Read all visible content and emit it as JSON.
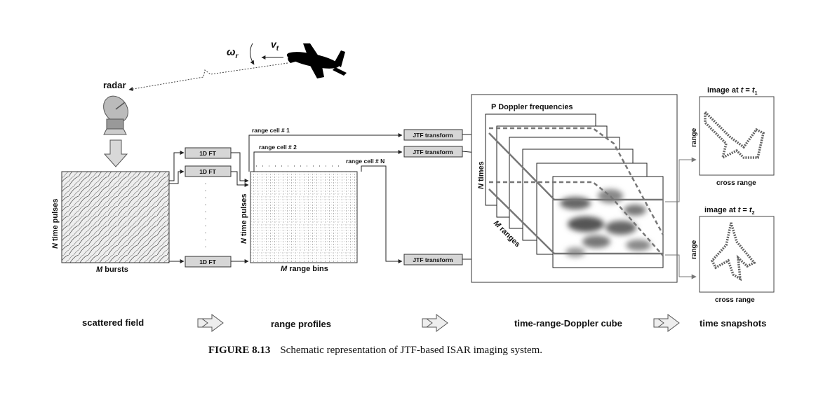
{
  "target": {
    "omega": "ω",
    "omega_sub": "r",
    "velocity": "v",
    "velocity_sub": "t"
  },
  "radar": {
    "label": "radar"
  },
  "scattered": {
    "y_label_var": "N",
    "y_label": " time pulses",
    "x_label_var": "M",
    "x_label": " bursts"
  },
  "ft_boxes": {
    "label": "1D FT"
  },
  "profiles": {
    "y_label_var": "N",
    "y_label": " time pulses",
    "x_label_var": "M",
    "x_label": " range bins",
    "cell1": "range cell # 1",
    "cell2": "range cell # 2",
    "cellN": "range cell # N"
  },
  "jtf_boxes": {
    "label": "JTF transform"
  },
  "cube": {
    "top_label": "P Doppler frequencies",
    "side_var": "N",
    "side_label": " times",
    "diag_var": "M",
    "diag_label": " ranges"
  },
  "snapshots": {
    "img1_prefix": "image at ",
    "img1_var": "t",
    "img1_eq": " = ",
    "img1_t": "t",
    "img1_sub": "1",
    "img2_prefix": "image at ",
    "img2_var": "t",
    "img2_eq": " = ",
    "img2_t": "t",
    "img2_sub": "2",
    "y_label": "range",
    "x_label": "cross range"
  },
  "stages": {
    "s1": "scattered field",
    "s2": "range profiles",
    "s3": "time-range-Doppler cube",
    "s4": "time snapshots"
  },
  "caption": {
    "figure": "FIGURE 8.13",
    "text": "Schematic representation of JTF-based ISAR imaging system."
  }
}
